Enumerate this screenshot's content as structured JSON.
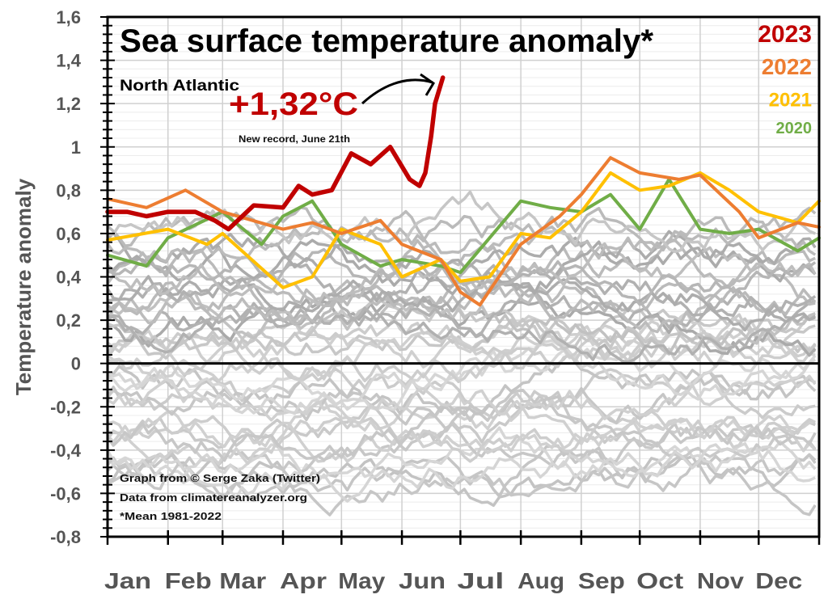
{
  "chart_data": {
    "type": "line",
    "title": "Sea surface temperature anomaly*",
    "subtitle": "North Atlantic",
    "xlabel": "",
    "ylabel": "Temperature anomaly",
    "x_unit": "day of year",
    "xlim": [
      0,
      365
    ],
    "ylim": [
      -0.8,
      1.6
    ],
    "grid": true,
    "legend_placement": "top-right",
    "yticks": [
      1.6,
      1.4,
      1.2,
      1.0,
      0.8,
      0.6,
      0.4,
      0.2,
      0,
      -0.2,
      -0.4,
      -0.6,
      -0.8
    ],
    "ytick_labels": [
      "1,6",
      "1,4",
      "1,2",
      "1",
      "0,8",
      "0,6",
      "0,4",
      "0,2",
      "0",
      "-0,2",
      "-0,4",
      "-0,6",
      "-0,8"
    ],
    "month_ticks_day": [
      0,
      31,
      59,
      90,
      120,
      151,
      181,
      212,
      243,
      273,
      304,
      334,
      365
    ],
    "xtick_labels": [
      "Jan",
      "Feb",
      "Mar",
      "Apr",
      "May",
      "Jun",
      "Jul",
      "Aug",
      "Sep",
      "Oct",
      "Nov",
      "Dec"
    ],
    "series": [
      {
        "name": "2023",
        "color": "#c00000",
        "x": [
          0,
          10,
          20,
          31,
          45,
          55,
          62,
          75,
          90,
          98,
          105,
          115,
          125,
          135,
          145,
          155,
          160,
          163,
          166,
          168,
          172
        ],
        "values": [
          0.7,
          0.7,
          0.68,
          0.7,
          0.7,
          0.66,
          0.62,
          0.73,
          0.72,
          0.82,
          0.78,
          0.8,
          0.97,
          0.92,
          1.0,
          0.85,
          0.82,
          0.88,
          1.05,
          1.2,
          1.32
        ]
      },
      {
        "name": "2022",
        "color": "#ed7d31",
        "x": [
          0,
          20,
          40,
          59,
          90,
          105,
          120,
          140,
          151,
          171,
          181,
          191,
          212,
          232,
          243,
          258,
          273,
          293,
          304,
          324,
          334,
          354,
          365
        ],
        "values": [
          0.76,
          0.72,
          0.8,
          0.7,
          0.62,
          0.65,
          0.6,
          0.66,
          0.55,
          0.48,
          0.33,
          0.27,
          0.55,
          0.68,
          0.78,
          0.95,
          0.88,
          0.85,
          0.87,
          0.7,
          0.58,
          0.65,
          0.63
        ]
      },
      {
        "name": "2021",
        "color": "#ffc000",
        "x": [
          0,
          31,
          51,
          59,
          90,
          105,
          120,
          140,
          151,
          171,
          181,
          196,
          212,
          227,
          243,
          258,
          273,
          288,
          304,
          319,
          334,
          354,
          365
        ],
        "values": [
          0.57,
          0.62,
          0.55,
          0.6,
          0.35,
          0.4,
          0.62,
          0.55,
          0.4,
          0.48,
          0.38,
          0.4,
          0.6,
          0.58,
          0.7,
          0.88,
          0.8,
          0.82,
          0.88,
          0.8,
          0.7,
          0.65,
          0.75
        ]
      },
      {
        "name": "2020",
        "color": "#70ad47",
        "x": [
          0,
          20,
          31,
          59,
          79,
          90,
          105,
          120,
          140,
          151,
          171,
          181,
          196,
          212,
          227,
          243,
          258,
          273,
          288,
          304,
          319,
          334,
          354,
          365
        ],
        "values": [
          0.5,
          0.45,
          0.58,
          0.7,
          0.55,
          0.68,
          0.75,
          0.55,
          0.45,
          0.48,
          0.45,
          0.42,
          0.58,
          0.75,
          0.72,
          0.7,
          0.78,
          0.62,
          0.85,
          0.62,
          0.6,
          0.62,
          0.52,
          0.58
        ]
      }
    ],
    "historical_series": {
      "description": "Years 1981-2019 (grey lines)",
      "color_range": [
        "#a6a6a6",
        "#d9d9d9"
      ],
      "value_range": [
        -0.7,
        0.8
      ]
    },
    "annotations": [
      {
        "text": "+1,32°C",
        "color": "#c00000",
        "points_to_day": 172,
        "points_to_value": 1.32
      },
      {
        "text": "New record, June 21th"
      }
    ],
    "credits": [
      "Graph from © Serge Zaka (Twitter)",
      "Data from climatereanalyzer.org",
      "*Mean 1981-2022"
    ]
  }
}
